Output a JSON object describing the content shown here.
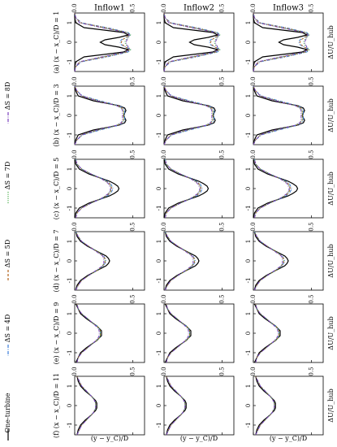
{
  "figure": {
    "column_titles": [
      "Inflow1",
      "Inflow2",
      "Inflow3"
    ],
    "panel_labels": [
      "(a)   (x − x_C)/D = 1",
      "(b)   (x − x_C)/D = 3",
      "(c)   (x − x_C)/D = 5",
      "(d)   (x − x_C)/D = 7",
      "(e)   (x − x_C)/D = 9",
      "(f)   (x − x_C)/D = 11"
    ],
    "xlabel": "(y − y_C)/D",
    "ylabel": "ΔU/U_hub",
    "colors": {
      "one_turbine": "#000000",
      "dS4": "#3b7dd8",
      "dS5": "#b5651d",
      "dS7": "#2ca02c",
      "dS8": "#7b3fbf"
    },
    "legend": [
      {
        "key": "one_turbine",
        "label": "One-turbine",
        "style": "solid",
        "color": "#000000"
      },
      {
        "key": "dS4",
        "label": "ΔS = 4D",
        "style": "dashdot",
        "color": "#3b7dd8"
      },
      {
        "key": "dS5",
        "label": "ΔS = 5D",
        "style": "dashed",
        "color": "#b5651d"
      },
      {
        "key": "dS7",
        "label": "ΔS = 7D",
        "style": "dotted",
        "color": "#2ca02c"
      },
      {
        "key": "dS8",
        "label": "ΔS = 8D",
        "style": "dashdot",
        "color": "#7b3fbf"
      }
    ]
  },
  "chart_data": {
    "type": "line",
    "layout": "grid 6 rows x 3 columns; rows = downstream positions (x-x_C)/D = 1,3,5,7,9,11 (a-f); columns = Inflow1, Inflow2, Inflow3",
    "x": [
      -1.5,
      -1.25,
      -1.0,
      -0.75,
      -0.5,
      -0.375,
      -0.25,
      -0.125,
      0.0,
      0.125,
      0.25,
      0.375,
      0.5,
      0.75,
      1.0,
      1.25,
      1.5
    ],
    "xlim": [
      -1.5,
      1.5
    ],
    "ylim": [
      0,
      0.6
    ],
    "xticks": [
      -1,
      0,
      1
    ],
    "yticks": [
      0.0,
      0.5
    ],
    "rows": [
      {
        "label": "(a)",
        "position": 1,
        "series": [
          {
            "name": "One-turbine",
            "values": [
              0.0,
              0.0,
              0.01,
              0.08,
              0.42,
              0.46,
              0.38,
              0.26,
              0.22,
              0.26,
              0.38,
              0.46,
              0.42,
              0.08,
              0.01,
              0.0,
              0.0
            ]
          },
          {
            "name": "ΔS = 4D",
            "values": [
              0.0,
              0.01,
              0.06,
              0.28,
              0.46,
              0.48,
              0.44,
              0.4,
              0.39,
              0.4,
              0.44,
              0.48,
              0.46,
              0.28,
              0.06,
              0.01,
              0.0
            ]
          },
          {
            "name": "ΔS = 5D",
            "values": [
              0.0,
              0.01,
              0.05,
              0.26,
              0.45,
              0.47,
              0.44,
              0.41,
              0.4,
              0.41,
              0.44,
              0.47,
              0.45,
              0.26,
              0.05,
              0.01,
              0.0
            ]
          },
          {
            "name": "ΔS = 7D",
            "values": [
              0.0,
              0.01,
              0.04,
              0.24,
              0.45,
              0.48,
              0.46,
              0.44,
              0.43,
              0.44,
              0.46,
              0.48,
              0.45,
              0.24,
              0.04,
              0.01,
              0.0
            ]
          },
          {
            "name": "ΔS = 8D",
            "values": [
              0.0,
              0.01,
              0.04,
              0.23,
              0.44,
              0.47,
              0.46,
              0.45,
              0.44,
              0.45,
              0.46,
              0.47,
              0.44,
              0.23,
              0.04,
              0.01,
              0.0
            ]
          }
        ]
      },
      {
        "label": "(b)",
        "position": 3,
        "series": [
          {
            "name": "One-turbine",
            "values": [
              0.0,
              0.01,
              0.03,
              0.16,
              0.38,
              0.43,
              0.44,
              0.43,
              0.42,
              0.43,
              0.44,
              0.43,
              0.38,
              0.16,
              0.03,
              0.01,
              0.0
            ]
          },
          {
            "name": "ΔS = 4D",
            "values": [
              0.0,
              0.02,
              0.07,
              0.22,
              0.38,
              0.42,
              0.43,
              0.43,
              0.43,
              0.43,
              0.43,
              0.42,
              0.38,
              0.22,
              0.07,
              0.02,
              0.0
            ]
          },
          {
            "name": "ΔS = 5D",
            "values": [
              0.0,
              0.02,
              0.06,
              0.2,
              0.37,
              0.41,
              0.42,
              0.42,
              0.42,
              0.42,
              0.42,
              0.41,
              0.37,
              0.2,
              0.06,
              0.02,
              0.0
            ]
          },
          {
            "name": "ΔS = 7D",
            "values": [
              0.0,
              0.02,
              0.06,
              0.2,
              0.36,
              0.4,
              0.42,
              0.42,
              0.42,
              0.42,
              0.42,
              0.4,
              0.36,
              0.2,
              0.06,
              0.02,
              0.0
            ]
          },
          {
            "name": "ΔS = 8D",
            "values": [
              0.0,
              0.02,
              0.06,
              0.19,
              0.36,
              0.4,
              0.41,
              0.41,
              0.41,
              0.41,
              0.41,
              0.4,
              0.36,
              0.19,
              0.06,
              0.02,
              0.0
            ]
          }
        ]
      },
      {
        "label": "(c)",
        "position": 5,
        "series": [
          {
            "name": "One-turbine",
            "values": [
              0.0,
              0.01,
              0.04,
              0.12,
              0.24,
              0.3,
              0.34,
              0.37,
              0.38,
              0.37,
              0.34,
              0.3,
              0.24,
              0.12,
              0.04,
              0.01,
              0.0
            ]
          },
          {
            "name": "ΔS = 4D",
            "values": [
              0.01,
              0.02,
              0.06,
              0.14,
              0.24,
              0.28,
              0.31,
              0.32,
              0.33,
              0.32,
              0.31,
              0.28,
              0.24,
              0.14,
              0.06,
              0.02,
              0.01
            ]
          },
          {
            "name": "ΔS = 5D",
            "values": [
              0.01,
              0.02,
              0.06,
              0.14,
              0.23,
              0.27,
              0.3,
              0.31,
              0.32,
              0.31,
              0.3,
              0.27,
              0.23,
              0.14,
              0.06,
              0.02,
              0.01
            ]
          },
          {
            "name": "ΔS = 7D",
            "values": [
              0.01,
              0.02,
              0.06,
              0.14,
              0.23,
              0.27,
              0.29,
              0.31,
              0.31,
              0.31,
              0.29,
              0.27,
              0.23,
              0.14,
              0.06,
              0.02,
              0.01
            ]
          },
          {
            "name": "ΔS = 8D",
            "values": [
              0.01,
              0.02,
              0.06,
              0.14,
              0.23,
              0.26,
              0.29,
              0.3,
              0.31,
              0.3,
              0.29,
              0.26,
              0.23,
              0.14,
              0.06,
              0.02,
              0.01
            ]
          }
        ]
      },
      {
        "label": "(d)",
        "position": 7,
        "series": [
          {
            "name": "One-turbine",
            "values": [
              0.01,
              0.02,
              0.05,
              0.11,
              0.19,
              0.23,
              0.27,
              0.29,
              0.3,
              0.29,
              0.27,
              0.23,
              0.19,
              0.11,
              0.05,
              0.02,
              0.01
            ]
          },
          {
            "name": "ΔS = 4D",
            "values": [
              0.01,
              0.03,
              0.06,
              0.12,
              0.19,
              0.22,
              0.25,
              0.26,
              0.27,
              0.26,
              0.25,
              0.22,
              0.19,
              0.12,
              0.06,
              0.03,
              0.01
            ]
          },
          {
            "name": "ΔS = 5D",
            "values": [
              0.01,
              0.03,
              0.06,
              0.12,
              0.19,
              0.22,
              0.24,
              0.26,
              0.26,
              0.26,
              0.24,
              0.22,
              0.19,
              0.12,
              0.06,
              0.03,
              0.01
            ]
          },
          {
            "name": "ΔS = 7D",
            "values": [
              0.01,
              0.03,
              0.06,
              0.12,
              0.19,
              0.22,
              0.24,
              0.25,
              0.26,
              0.25,
              0.24,
              0.22,
              0.19,
              0.12,
              0.06,
              0.03,
              0.01
            ]
          },
          {
            "name": "ΔS = 8D",
            "values": [
              0.01,
              0.03,
              0.06,
              0.12,
              0.18,
              0.21,
              0.24,
              0.25,
              0.25,
              0.25,
              0.24,
              0.21,
              0.18,
              0.12,
              0.06,
              0.03,
              0.01
            ]
          }
        ]
      },
      {
        "label": "(e)",
        "position": 9,
        "series": [
          {
            "name": "One-turbine",
            "values": [
              0.01,
              0.03,
              0.05,
              0.1,
              0.16,
              0.19,
              0.21,
              0.23,
              0.23,
              0.23,
              0.21,
              0.19,
              0.16,
              0.1,
              0.05,
              0.03,
              0.01
            ]
          },
          {
            "name": "ΔS = 4D",
            "values": [
              0.02,
              0.03,
              0.06,
              0.11,
              0.16,
              0.19,
              0.21,
              0.22,
              0.22,
              0.22,
              0.21,
              0.19,
              0.16,
              0.11,
              0.06,
              0.03,
              0.02
            ]
          },
          {
            "name": "ΔS = 5D",
            "values": [
              0.02,
              0.03,
              0.06,
              0.11,
              0.16,
              0.19,
              0.21,
              0.22,
              0.22,
              0.22,
              0.21,
              0.19,
              0.16,
              0.11,
              0.06,
              0.03,
              0.02
            ]
          },
          {
            "name": "ΔS = 7D",
            "values": [
              0.02,
              0.03,
              0.06,
              0.11,
              0.16,
              0.19,
              0.21,
              0.22,
              0.22,
              0.22,
              0.21,
              0.19,
              0.16,
              0.11,
              0.06,
              0.03,
              0.02
            ]
          },
          {
            "name": "ΔS = 8D",
            "values": [
              0.02,
              0.03,
              0.06,
              0.11,
              0.16,
              0.18,
              0.2,
              0.21,
              0.21,
              0.21,
              0.2,
              0.18,
              0.16,
              0.11,
              0.06,
              0.03,
              0.02
            ]
          }
        ]
      },
      {
        "label": "(f)",
        "position": 11,
        "series": [
          {
            "name": "One-turbine",
            "values": [
              0.02,
              0.03,
              0.05,
              0.09,
              0.14,
              0.16,
              0.18,
              0.19,
              0.19,
              0.19,
              0.18,
              0.16,
              0.14,
              0.09,
              0.05,
              0.03,
              0.02
            ]
          },
          {
            "name": "ΔS = 4D",
            "values": [
              0.02,
              0.04,
              0.06,
              0.1,
              0.14,
              0.16,
              0.17,
              0.18,
              0.18,
              0.18,
              0.17,
              0.16,
              0.14,
              0.1,
              0.06,
              0.04,
              0.02
            ]
          },
          {
            "name": "ΔS = 5D",
            "values": [
              0.02,
              0.04,
              0.06,
              0.1,
              0.14,
              0.16,
              0.17,
              0.18,
              0.18,
              0.18,
              0.17,
              0.16,
              0.14,
              0.1,
              0.06,
              0.04,
              0.02
            ]
          },
          {
            "name": "ΔS = 7D",
            "values": [
              0.02,
              0.04,
              0.06,
              0.1,
              0.14,
              0.16,
              0.17,
              0.18,
              0.18,
              0.18,
              0.17,
              0.16,
              0.14,
              0.1,
              0.06,
              0.04,
              0.02
            ]
          },
          {
            "name": "ΔS = 8D",
            "values": [
              0.02,
              0.04,
              0.06,
              0.1,
              0.14,
              0.16,
              0.17,
              0.18,
              0.18,
              0.18,
              0.17,
              0.16,
              0.14,
              0.1,
              0.06,
              0.04,
              0.02
            ]
          }
        ]
      }
    ]
  }
}
